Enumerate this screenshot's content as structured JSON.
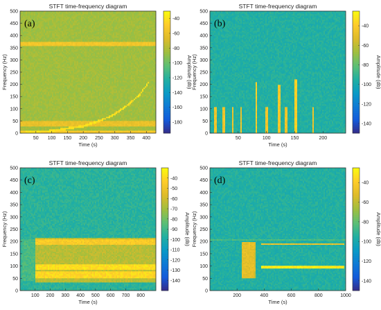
{
  "chart_data": [
    {
      "type": "heatmap",
      "panel_label": "(a)",
      "title": "STFT time-frequency diagram",
      "xlabel": "Time (s)",
      "ylabel": "Frequency (Hz)",
      "colorbar_label": "Amplitude (db)",
      "xlim": [
        0,
        430
      ],
      "ylim": [
        0,
        500
      ],
      "xticks": [
        50,
        100,
        150,
        200,
        250,
        300,
        350,
        400
      ],
      "yticks": [
        0,
        50,
        100,
        150,
        200,
        250,
        300,
        350,
        400,
        450,
        500
      ],
      "clim": [
        -195,
        -30
      ],
      "cticks": [
        -40,
        -60,
        -80,
        -100,
        -120,
        -140,
        -160,
        -180
      ],
      "background_level": -85,
      "features": [
        {
          "kind": "hline",
          "y": 365,
          "x": [
            0,
            430
          ],
          "level": -55,
          "width": 8
        },
        {
          "kind": "hline",
          "y": 40,
          "x": [
            0,
            430
          ],
          "level": -60,
          "width": 10
        },
        {
          "kind": "hline",
          "y": 8,
          "x": [
            0,
            430
          ],
          "level": -50,
          "width": 6
        },
        {
          "kind": "curve",
          "points": [
            [
              0,
              3
            ],
            [
              100,
              10
            ],
            [
              200,
              30
            ],
            [
              260,
              55
            ],
            [
              300,
              80
            ],
            [
              340,
              115
            ],
            [
              380,
              160
            ],
            [
              410,
              215
            ]
          ],
          "level": -40,
          "width": 4
        }
      ]
    },
    {
      "type": "heatmap",
      "panel_label": "(b)",
      "title": "STFT time-frequency diagram",
      "xlabel": "Time (s)",
      "ylabel": "Frequency (Hz)",
      "colorbar_label": "Amplitude (db)",
      "xlim": [
        0,
        240
      ],
      "ylim": [
        0,
        500
      ],
      "xticks": [
        50,
        100,
        150,
        200
      ],
      "yticks": [
        0,
        50,
        100,
        150,
        200,
        250,
        300,
        350,
        400,
        450,
        500
      ],
      "clim": [
        -150,
        -25
      ],
      "cticks": [
        -40,
        -60,
        -80,
        -100,
        -120,
        -140
      ],
      "background_level": -95,
      "features": [
        {
          "kind": "vline",
          "x": 10,
          "y": [
            0,
            110
          ],
          "level": -45,
          "width": 2
        },
        {
          "kind": "vline",
          "x": 25,
          "y": [
            0,
            110
          ],
          "level": -45,
          "width": 2
        },
        {
          "kind": "vline",
          "x": 40,
          "y": [
            0,
            110
          ],
          "level": -45,
          "width": 2
        },
        {
          "kind": "vline",
          "x": 55,
          "y": [
            0,
            110
          ],
          "level": -45,
          "width": 2
        },
        {
          "kind": "vline",
          "x": 82,
          "y": [
            0,
            210
          ],
          "level": -40,
          "width": 2
        },
        {
          "kind": "vline",
          "x": 100,
          "y": [
            0,
            110
          ],
          "level": -45,
          "width": 2
        },
        {
          "kind": "vline",
          "x": 123,
          "y": [
            0,
            200
          ],
          "level": -42,
          "width": 2
        },
        {
          "kind": "vline",
          "x": 135,
          "y": [
            0,
            110
          ],
          "level": -45,
          "width": 2
        },
        {
          "kind": "vline",
          "x": 152,
          "y": [
            0,
            220
          ],
          "level": -38,
          "width": 2
        },
        {
          "kind": "vline",
          "x": 182,
          "y": [
            0,
            110
          ],
          "level": -45,
          "width": 2
        }
      ]
    },
    {
      "type": "heatmap",
      "panel_label": "(c)",
      "title": "STFT time-frequency diagram",
      "xlabel": "Time (s)",
      "ylabel": "Frequency (Hz)",
      "colorbar_label": "Amplitude (db)",
      "xlim": [
        0,
        900
      ],
      "ylim": [
        0,
        500
      ],
      "xticks": [
        100,
        200,
        300,
        400,
        500,
        600,
        700,
        800
      ],
      "yticks": [
        0,
        50,
        100,
        150,
        200,
        250,
        300,
        350,
        400,
        450,
        500
      ],
      "clim": [
        -150,
        -30
      ],
      "cticks": [
        -40,
        -50,
        -60,
        -70,
        -80,
        -90,
        -100,
        -110,
        -120,
        -130,
        -140
      ],
      "background_level": -95,
      "features": [
        {
          "kind": "band",
          "y": [
            35,
            215
          ],
          "x": [
            100,
            900
          ],
          "level": -65
        },
        {
          "kind": "band",
          "y": [
            52,
            82
          ],
          "x": [
            100,
            900
          ],
          "level": -40
        },
        {
          "kind": "band",
          "y": [
            88,
            110
          ],
          "x": [
            100,
            900
          ],
          "level": -38
        },
        {
          "kind": "band",
          "y": [
            190,
            212
          ],
          "x": [
            100,
            900
          ],
          "level": -45
        },
        {
          "kind": "band",
          "y": [
            40,
            210
          ],
          "x": [
            10,
            100
          ],
          "level": -88
        }
      ]
    },
    {
      "type": "heatmap",
      "panel_label": "(d)",
      "title": "STFT time-frequency diagram",
      "xlabel": "Time (s)",
      "ylabel": "Frequency (Hz)",
      "colorbar_label": "Amplitude (db)",
      "xlim": [
        0,
        1000
      ],
      "ylim": [
        0,
        500
      ],
      "xticks": [
        200,
        400,
        600,
        800,
        1000
      ],
      "yticks": [
        0,
        50,
        100,
        150,
        200,
        250,
        300,
        350,
        400,
        450,
        500
      ],
      "clim": [
        -150,
        -25
      ],
      "cticks": [
        -40,
        -60,
        -80,
        -100,
        -120,
        -140
      ],
      "background_level": -95,
      "features": [
        {
          "kind": "hline",
          "y": 95,
          "x": [
            380,
            990
          ],
          "level": -30,
          "width": 5
        },
        {
          "kind": "hline",
          "y": 190,
          "x": [
            380,
            990
          ],
          "level": -45,
          "width": 3
        },
        {
          "kind": "hline",
          "y": 210,
          "x": [
            0,
            1000
          ],
          "level": -85,
          "width": 3
        },
        {
          "kind": "vline",
          "x": 280,
          "y": [
            50,
            200
          ],
          "level": -50,
          "width": 12
        },
        {
          "kind": "vline",
          "x": 300,
          "y": [
            50,
            200
          ],
          "level": -55,
          "width": 8
        }
      ]
    }
  ]
}
